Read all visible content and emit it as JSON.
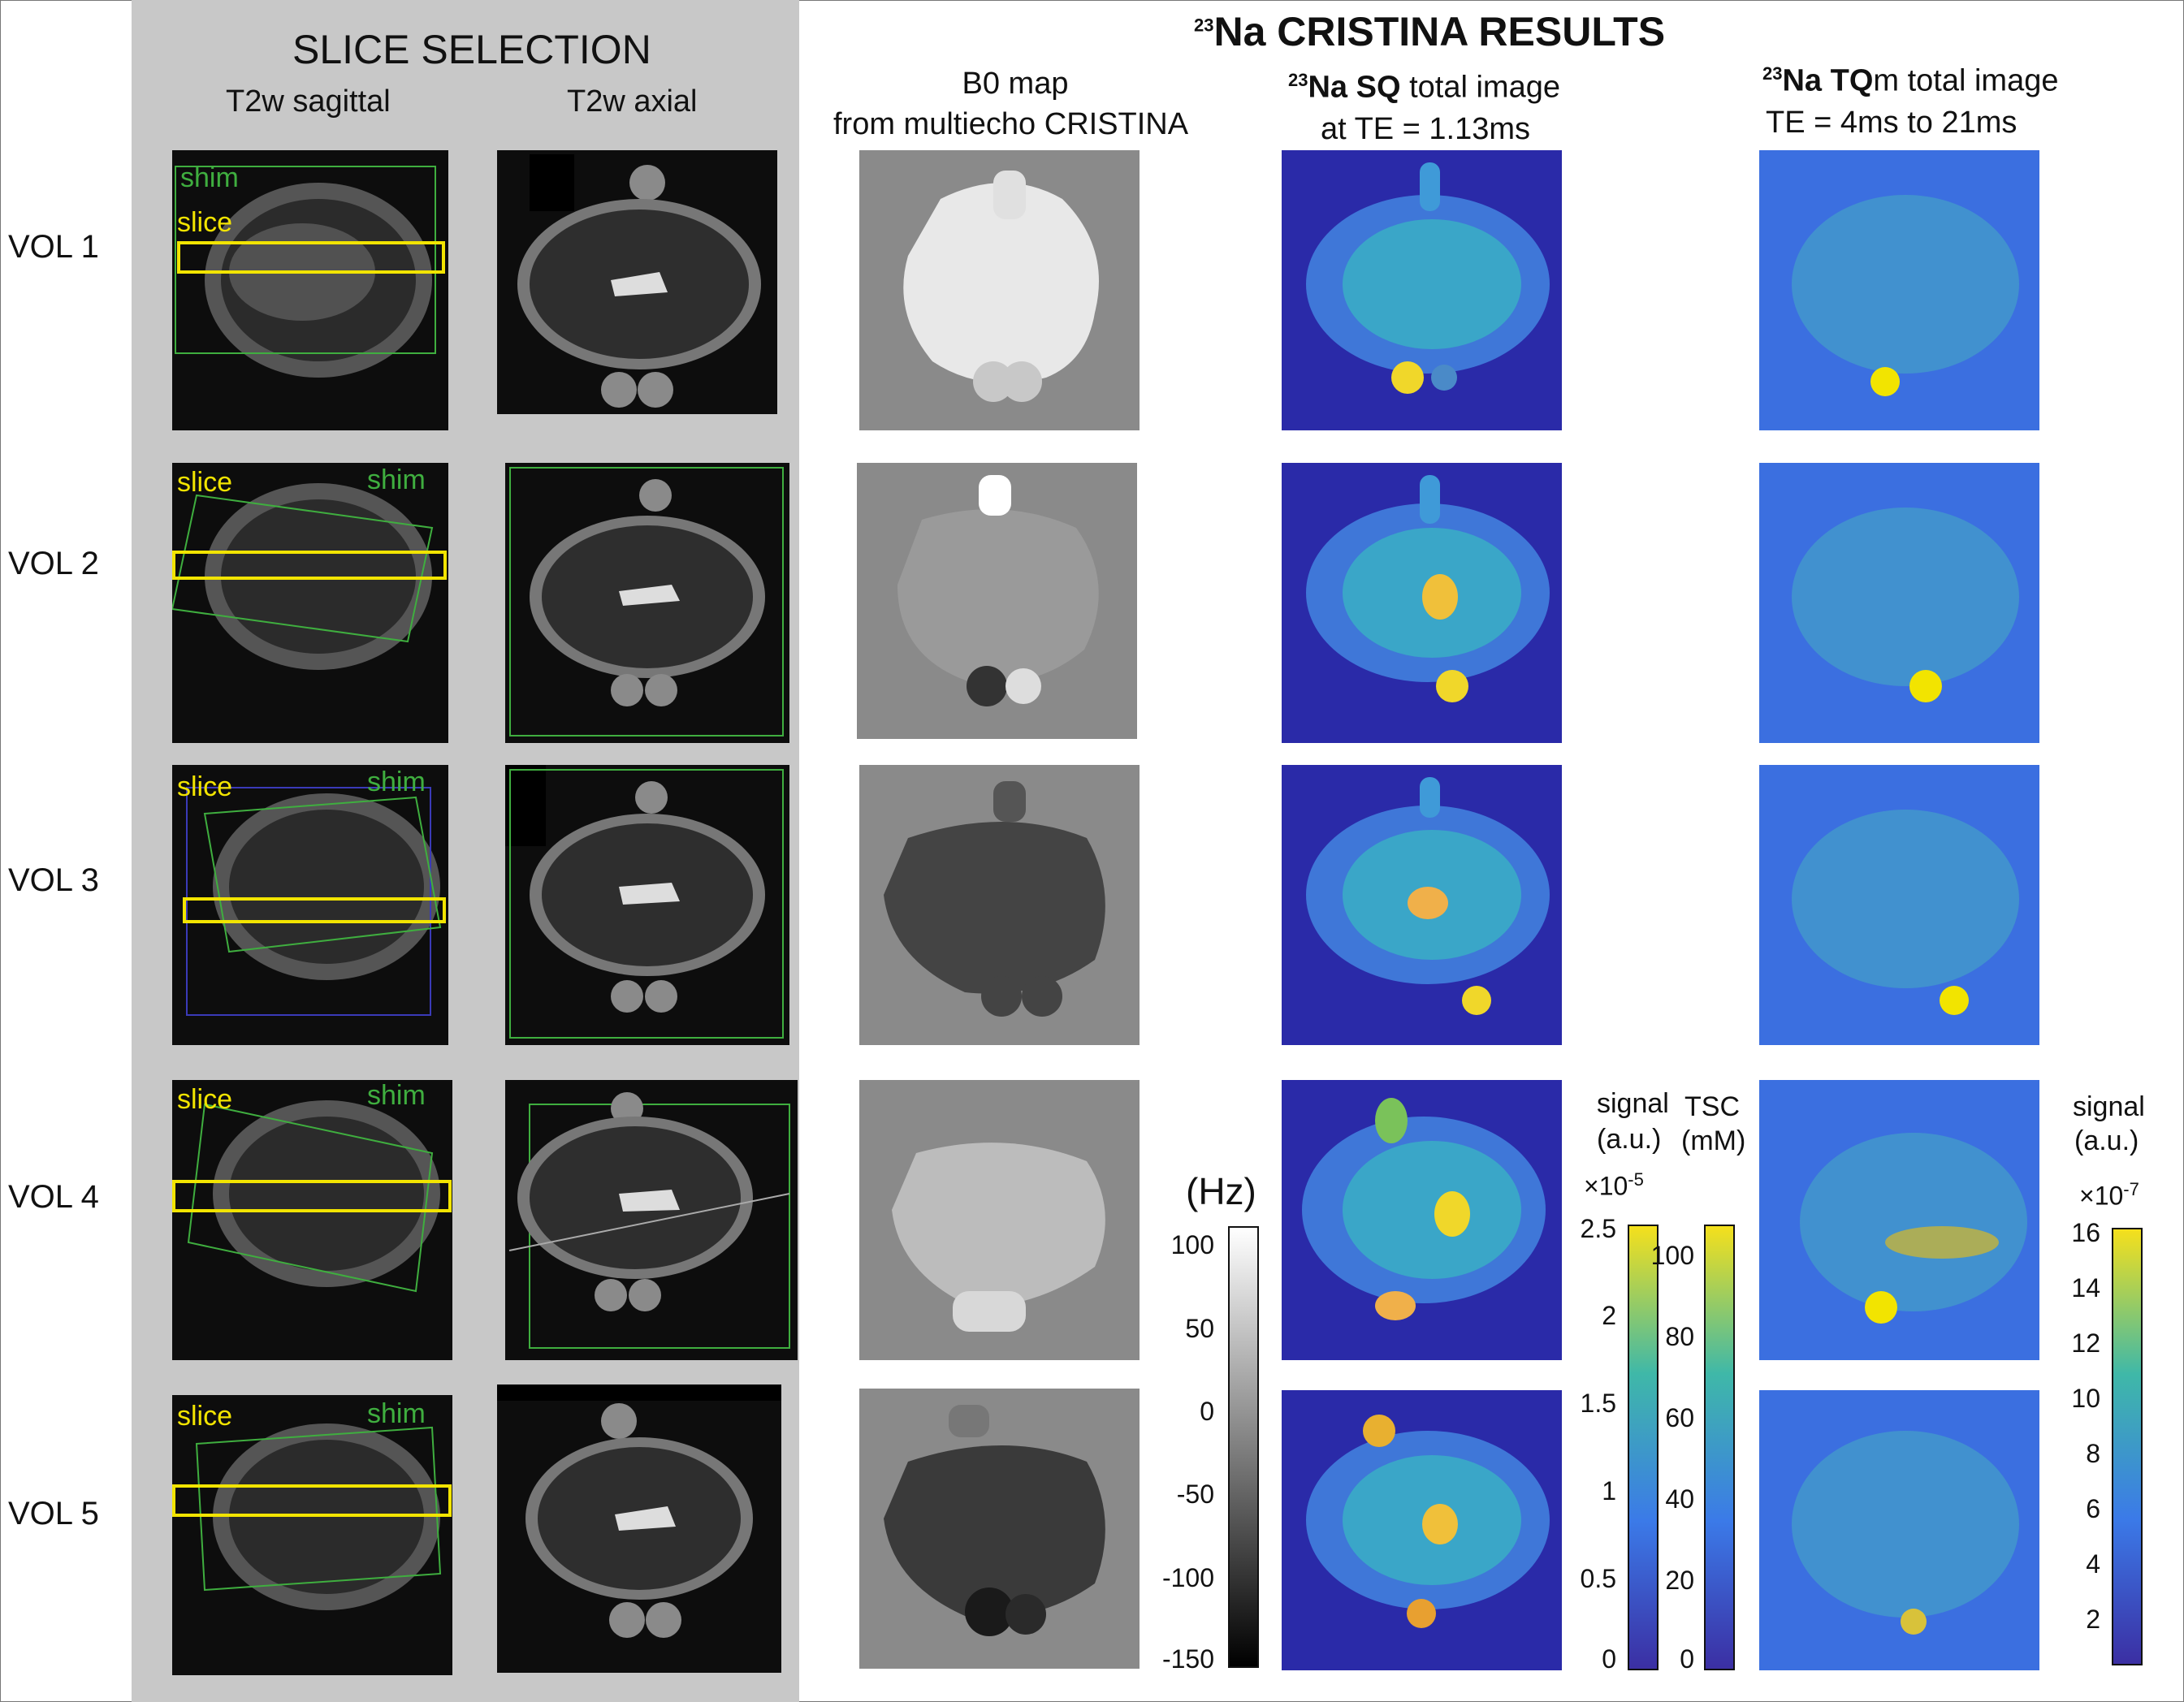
{
  "slice_selection": {
    "title": "SLICE SELECTION",
    "col_sagittal": "T2w sagittal",
    "col_axial": "T2w axial"
  },
  "results": {
    "title_sup": "23",
    "title_main": "Na CRISTINA RESULTS",
    "b0_line1": "B0 map",
    "b0_line2": "from multiecho CRISTINA",
    "sq_sup": "23",
    "sq_bold": "Na SQ",
    "sq_rest": " total image",
    "sq_line2": "at TE = 1.13ms",
    "tq_sup": "23",
    "tq_bold": "Na TQ",
    "tq_rest": "m total image",
    "tq_line2": "TE =   4ms to 21ms"
  },
  "rows": [
    {
      "label": "VOL 1",
      "labels_top": "shim",
      "labels_slice": "slice"
    },
    {
      "label": "VOL 2",
      "labels_top": "shim",
      "labels_slice": "slice"
    },
    {
      "label": "VOL 3",
      "labels_top": "shim",
      "labels_slice": "slice"
    },
    {
      "label": "VOL 4",
      "labels_top": "shim",
      "labels_slice": "slice"
    },
    {
      "label": "VOL 5",
      "labels_top": "shim",
      "labels_slice": "slice"
    }
  ],
  "colorbars": {
    "hz": {
      "unit": "(Hz)",
      "ticks": [
        "100",
        "50",
        "0",
        "-50",
        "-100",
        "-150"
      ]
    },
    "signal_sq": {
      "title1": "signal",
      "title2": "(a.u.)",
      "exp": "×10",
      "exp_sup": "-5",
      "ticks": [
        "2.5",
        "2",
        "1.5",
        "1",
        "0.5",
        "0"
      ]
    },
    "tsc": {
      "title1": "TSC",
      "title2": "(mM)",
      "ticks": [
        "100",
        "80",
        "60",
        "40",
        "20",
        "0"
      ]
    },
    "signal_tq": {
      "title1": "signal",
      "title2": "(a.u.)",
      "exp": "×10",
      "exp_sup": "-7",
      "ticks": [
        "16",
        "14",
        "12",
        "10",
        "8",
        "6",
        "4",
        "2"
      ]
    }
  },
  "colors": {
    "yellow_box": "#f2e400",
    "green_shim": "#3fae3f",
    "parula_low": "#3b2fa3",
    "parula_high": "#f5e01c"
  }
}
